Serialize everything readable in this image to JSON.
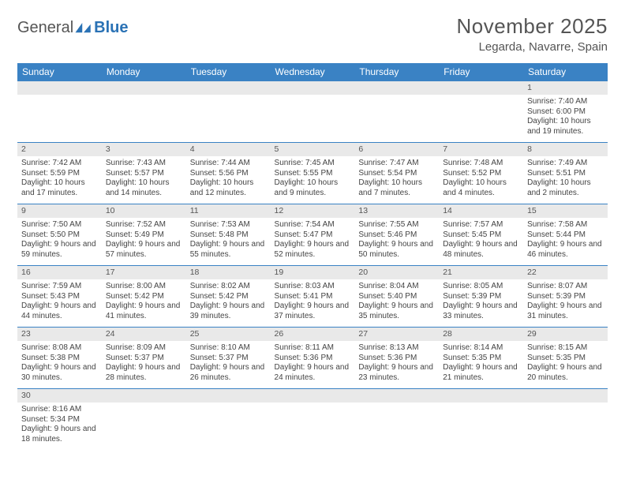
{
  "logo": {
    "part1": "General",
    "part2": "Blue"
  },
  "title": "November 2025",
  "location": "Legarda, Navarre, Spain",
  "colors": {
    "header_bg": "#3a82c4",
    "grid_line": "#3a82c4",
    "daynum_bg": "#e9e9e9",
    "text": "#444444",
    "brand_blue": "#2a72b5",
    "brand_gray": "#555555"
  },
  "weekdays": [
    "Sunday",
    "Monday",
    "Tuesday",
    "Wednesday",
    "Thursday",
    "Friday",
    "Saturday"
  ],
  "weeks": [
    [
      null,
      null,
      null,
      null,
      null,
      null,
      {
        "d": "1",
        "sr": "7:40 AM",
        "ss": "6:00 PM",
        "dl": "10 hours and 19 minutes."
      }
    ],
    [
      {
        "d": "2",
        "sr": "7:42 AM",
        "ss": "5:59 PM",
        "dl": "10 hours and 17 minutes."
      },
      {
        "d": "3",
        "sr": "7:43 AM",
        "ss": "5:57 PM",
        "dl": "10 hours and 14 minutes."
      },
      {
        "d": "4",
        "sr": "7:44 AM",
        "ss": "5:56 PM",
        "dl": "10 hours and 12 minutes."
      },
      {
        "d": "5",
        "sr": "7:45 AM",
        "ss": "5:55 PM",
        "dl": "10 hours and 9 minutes."
      },
      {
        "d": "6",
        "sr": "7:47 AM",
        "ss": "5:54 PM",
        "dl": "10 hours and 7 minutes."
      },
      {
        "d": "7",
        "sr": "7:48 AM",
        "ss": "5:52 PM",
        "dl": "10 hours and 4 minutes."
      },
      {
        "d": "8",
        "sr": "7:49 AM",
        "ss": "5:51 PM",
        "dl": "10 hours and 2 minutes."
      }
    ],
    [
      {
        "d": "9",
        "sr": "7:50 AM",
        "ss": "5:50 PM",
        "dl": "9 hours and 59 minutes."
      },
      {
        "d": "10",
        "sr": "7:52 AM",
        "ss": "5:49 PM",
        "dl": "9 hours and 57 minutes."
      },
      {
        "d": "11",
        "sr": "7:53 AM",
        "ss": "5:48 PM",
        "dl": "9 hours and 55 minutes."
      },
      {
        "d": "12",
        "sr": "7:54 AM",
        "ss": "5:47 PM",
        "dl": "9 hours and 52 minutes."
      },
      {
        "d": "13",
        "sr": "7:55 AM",
        "ss": "5:46 PM",
        "dl": "9 hours and 50 minutes."
      },
      {
        "d": "14",
        "sr": "7:57 AM",
        "ss": "5:45 PM",
        "dl": "9 hours and 48 minutes."
      },
      {
        "d": "15",
        "sr": "7:58 AM",
        "ss": "5:44 PM",
        "dl": "9 hours and 46 minutes."
      }
    ],
    [
      {
        "d": "16",
        "sr": "7:59 AM",
        "ss": "5:43 PM",
        "dl": "9 hours and 44 minutes."
      },
      {
        "d": "17",
        "sr": "8:00 AM",
        "ss": "5:42 PM",
        "dl": "9 hours and 41 minutes."
      },
      {
        "d": "18",
        "sr": "8:02 AM",
        "ss": "5:42 PM",
        "dl": "9 hours and 39 minutes."
      },
      {
        "d": "19",
        "sr": "8:03 AM",
        "ss": "5:41 PM",
        "dl": "9 hours and 37 minutes."
      },
      {
        "d": "20",
        "sr": "8:04 AM",
        "ss": "5:40 PM",
        "dl": "9 hours and 35 minutes."
      },
      {
        "d": "21",
        "sr": "8:05 AM",
        "ss": "5:39 PM",
        "dl": "9 hours and 33 minutes."
      },
      {
        "d": "22",
        "sr": "8:07 AM",
        "ss": "5:39 PM",
        "dl": "9 hours and 31 minutes."
      }
    ],
    [
      {
        "d": "23",
        "sr": "8:08 AM",
        "ss": "5:38 PM",
        "dl": "9 hours and 30 minutes."
      },
      {
        "d": "24",
        "sr": "8:09 AM",
        "ss": "5:37 PM",
        "dl": "9 hours and 28 minutes."
      },
      {
        "d": "25",
        "sr": "8:10 AM",
        "ss": "5:37 PM",
        "dl": "9 hours and 26 minutes."
      },
      {
        "d": "26",
        "sr": "8:11 AM",
        "ss": "5:36 PM",
        "dl": "9 hours and 24 minutes."
      },
      {
        "d": "27",
        "sr": "8:13 AM",
        "ss": "5:36 PM",
        "dl": "9 hours and 23 minutes."
      },
      {
        "d": "28",
        "sr": "8:14 AM",
        "ss": "5:35 PM",
        "dl": "9 hours and 21 minutes."
      },
      {
        "d": "29",
        "sr": "8:15 AM",
        "ss": "5:35 PM",
        "dl": "9 hours and 20 minutes."
      }
    ],
    [
      {
        "d": "30",
        "sr": "8:16 AM",
        "ss": "5:34 PM",
        "dl": "9 hours and 18 minutes."
      },
      null,
      null,
      null,
      null,
      null,
      null
    ]
  ],
  "labels": {
    "sunrise": "Sunrise: ",
    "sunset": "Sunset: ",
    "daylight": "Daylight: "
  }
}
